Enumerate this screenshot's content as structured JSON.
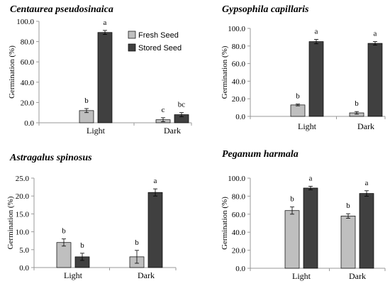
{
  "colors": {
    "fresh": "#bfbfbf",
    "stored": "#404040",
    "stroke": "#000000",
    "axis": "#999999"
  },
  "legend": {
    "fresh_label": "Fresh Seed",
    "stored_label": "Stored Seed"
  },
  "chart_data": [
    {
      "type": "bar",
      "title": "Centaurea pseudosinaica",
      "ylabel": "Germination (%)",
      "categories": [
        "Light",
        "Dark"
      ],
      "ylim": [
        0,
        100
      ],
      "yticks": [
        "0.0",
        "20.0",
        "40.0",
        "60.0",
        "80.0",
        "100.0"
      ],
      "yticks_values": [
        0,
        20,
        40,
        60,
        80,
        100
      ],
      "legend": true,
      "series": [
        {
          "name": "Fresh Seed",
          "values": [
            12,
            3
          ],
          "errors": [
            2,
            2
          ],
          "letters": [
            "b",
            "c"
          ]
        },
        {
          "name": "Stored Seed",
          "values": [
            89,
            8
          ],
          "errors": [
            2,
            2
          ],
          "letters": [
            "a",
            "bc"
          ]
        }
      ]
    },
    {
      "type": "bar",
      "title": "Gypsophila capillaris",
      "ylabel": "Germination (%)",
      "categories": [
        "Light",
        "Dark"
      ],
      "ylim": [
        0,
        100
      ],
      "yticks": [
        "0.0",
        "20.0",
        "40.0",
        "60.0",
        "80.0",
        "100.0"
      ],
      "yticks_values": [
        0,
        20,
        40,
        60,
        80,
        100
      ],
      "legend": false,
      "series": [
        {
          "name": "Fresh Seed",
          "values": [
            13,
            4
          ],
          "errors": [
            1,
            1.5
          ],
          "letters": [
            "b",
            "b"
          ]
        },
        {
          "name": "Stored Seed",
          "values": [
            85,
            83
          ],
          "errors": [
            2.5,
            2
          ],
          "letters": [
            "a",
            "a"
          ]
        }
      ]
    },
    {
      "type": "bar",
      "title": "Astragalus spinosus",
      "ylabel": "Germination (%)",
      "categories": [
        "Light",
        "Dark"
      ],
      "ylim": [
        0,
        25
      ],
      "yticks": [
        "0.0",
        "5.0",
        "10.0",
        "15.0",
        "20.0",
        "25.0"
      ],
      "yticks_values": [
        0,
        5,
        10,
        15,
        20,
        25
      ],
      "legend": false,
      "series": [
        {
          "name": "Fresh Seed",
          "values": [
            7,
            3
          ],
          "errors": [
            1,
            1.8
          ],
          "letters": [
            "b",
            "b"
          ]
        },
        {
          "name": "Stored Seed",
          "values": [
            3,
            21
          ],
          "errors": [
            1,
            1
          ],
          "letters": [
            "b",
            "a"
          ]
        }
      ]
    },
    {
      "type": "bar",
      "title": "Peganum harmala",
      "ylabel": "Germination (%)",
      "categories": [
        "Light",
        "Dark"
      ],
      "ylim": [
        0,
        100
      ],
      "yticks": [
        "0.0",
        "20.0",
        "40.0",
        "60.0",
        "80.0",
        "100.0"
      ],
      "yticks_values": [
        0,
        20,
        40,
        60,
        80,
        100
      ],
      "legend": false,
      "series": [
        {
          "name": "Fresh Seed",
          "values": [
            64,
            58
          ],
          "errors": [
            4,
            2.5
          ],
          "letters": [
            "b",
            "b"
          ]
        },
        {
          "name": "Stored Seed",
          "values": [
            89,
            83
          ],
          "errors": [
            2,
            3
          ],
          "letters": [
            "a",
            "a"
          ]
        }
      ]
    }
  ]
}
